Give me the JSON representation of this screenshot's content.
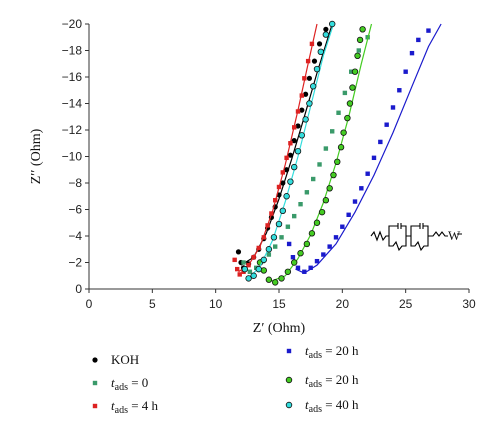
{
  "chart_data": {
    "type": "scatter",
    "title": "",
    "xlabel": "Z′ (Ohm)",
    "ylabel": "Z′′ (Ohm)",
    "xlim": [
      0,
      30
    ],
    "ylim": [
      0,
      -20
    ],
    "y_axis_inverted": true,
    "x_ticks": [
      "0",
      "5",
      "10",
      "15",
      "20",
      "25",
      "30"
    ],
    "y_ticks": [
      "0",
      "−2",
      "−4",
      "−6",
      "−8",
      "−10",
      "−12",
      "−14",
      "−16",
      "−18",
      "−20"
    ],
    "grid": false,
    "legend_position": "bottom",
    "inset": "equivalent circuit schematic",
    "series": [
      {
        "name": "KOH",
        "legend": {
          "main": "KOH"
        },
        "marker": "circle",
        "color": "#000000",
        "points": [
          [
            11.8,
            -2.8
          ],
          [
            12.0,
            -2.0
          ],
          [
            12.2,
            -1.6
          ],
          [
            12.6,
            -1.9
          ],
          [
            13.0,
            -2.4
          ],
          [
            13.4,
            -3.0
          ],
          [
            13.8,
            -3.8
          ],
          [
            14.1,
            -4.6
          ],
          [
            14.4,
            -5.4
          ],
          [
            14.7,
            -6.2
          ],
          [
            15.0,
            -7.1
          ],
          [
            15.3,
            -8.0
          ],
          [
            15.6,
            -9.0
          ],
          [
            15.9,
            -10.1
          ],
          [
            16.2,
            -11.2
          ],
          [
            16.5,
            -12.3
          ],
          [
            16.8,
            -13.5
          ],
          [
            17.1,
            -14.7
          ],
          [
            17.4,
            -15.9
          ],
          [
            17.8,
            -17.2
          ],
          [
            18.2,
            -18.5
          ],
          [
            18.7,
            -19.6
          ]
        ],
        "fit": [
          [
            12.0,
            -1.8
          ],
          [
            13.0,
            -2.4
          ],
          [
            14.0,
            -4.2
          ],
          [
            15.0,
            -6.8
          ],
          [
            16.0,
            -9.8
          ],
          [
            17.0,
            -13.0
          ],
          [
            18.0,
            -16.3
          ],
          [
            19.2,
            -20.0
          ]
        ]
      },
      {
        "name": "t_ads = 0",
        "legend": {
          "sym": "t",
          "sub": "ads",
          "val": " = 0"
        },
        "marker": "square",
        "color": "#3a9a6a",
        "points": [
          [
            12.2,
            -2.0
          ],
          [
            12.7,
            -1.3
          ],
          [
            13.2,
            -1.6
          ],
          [
            13.7,
            -2.1
          ],
          [
            14.2,
            -2.6
          ],
          [
            14.7,
            -3.2
          ],
          [
            15.2,
            -3.9
          ],
          [
            15.7,
            -4.7
          ],
          [
            16.2,
            -5.5
          ],
          [
            16.7,
            -6.4
          ],
          [
            17.2,
            -7.3
          ],
          [
            17.7,
            -8.3
          ],
          [
            18.2,
            -9.4
          ],
          [
            18.7,
            -10.6
          ],
          [
            19.2,
            -11.9
          ],
          [
            19.7,
            -13.3
          ],
          [
            20.2,
            -14.8
          ],
          [
            20.7,
            -16.4
          ],
          [
            21.3,
            -18.0
          ],
          [
            22.0,
            -19.0
          ]
        ],
        "fit": null
      },
      {
        "name": "t_ads = 4 h",
        "legend": {
          "sym": "t",
          "sub": "ads",
          "val": " = 4 h"
        },
        "marker": "square",
        "color": "#dd2222",
        "points": [
          [
            11.5,
            -2.2
          ],
          [
            11.7,
            -1.5
          ],
          [
            11.9,
            -1.1
          ],
          [
            12.2,
            -1.3
          ],
          [
            12.6,
            -1.8
          ],
          [
            13.0,
            -2.4
          ],
          [
            13.4,
            -3.1
          ],
          [
            13.8,
            -3.9
          ],
          [
            14.1,
            -4.8
          ],
          [
            14.4,
            -5.7
          ],
          [
            14.7,
            -6.7
          ],
          [
            15.0,
            -7.7
          ],
          [
            15.3,
            -8.8
          ],
          [
            15.6,
            -9.9
          ],
          [
            15.9,
            -11.0
          ],
          [
            16.2,
            -12.2
          ],
          [
            16.5,
            -13.4
          ],
          [
            16.8,
            -14.6
          ],
          [
            17.0,
            -15.9
          ],
          [
            17.3,
            -17.2
          ],
          [
            17.6,
            -18.5
          ]
        ],
        "fit": [
          [
            11.8,
            -1.3
          ],
          [
            12.6,
            -1.8
          ],
          [
            13.5,
            -3.2
          ],
          [
            14.5,
            -5.9
          ],
          [
            15.5,
            -9.4
          ],
          [
            16.5,
            -13.5
          ],
          [
            17.3,
            -17.0
          ],
          [
            18.0,
            -20.0
          ]
        ]
      },
      {
        "name": "t_ads = 20 h (square)",
        "legend": {
          "sym": "t",
          "sub": "ads",
          "val": " = 20 h"
        },
        "marker": "square",
        "color": "#1a1acc",
        "points": [
          [
            15.8,
            -3.4
          ],
          [
            16.1,
            -2.4
          ],
          [
            16.5,
            -1.6
          ],
          [
            17.0,
            -1.3
          ],
          [
            17.5,
            -1.6
          ],
          [
            18.0,
            -2.1
          ],
          [
            18.5,
            -2.6
          ],
          [
            19.0,
            -3.2
          ],
          [
            19.5,
            -3.9
          ],
          [
            20.0,
            -4.7
          ],
          [
            20.5,
            -5.6
          ],
          [
            21.0,
            -6.6
          ],
          [
            21.5,
            -7.6
          ],
          [
            22.0,
            -8.7
          ],
          [
            22.5,
            -9.9
          ],
          [
            23.0,
            -11.1
          ],
          [
            23.5,
            -12.4
          ],
          [
            24.0,
            -13.7
          ],
          [
            24.5,
            -15.0
          ],
          [
            25.0,
            -16.4
          ],
          [
            25.5,
            -17.8
          ],
          [
            26.0,
            -18.8
          ],
          [
            26.8,
            -19.5
          ]
        ],
        "fit": [
          [
            16.3,
            -1.5
          ],
          [
            17.0,
            -1.2
          ],
          [
            18.0,
            -1.8
          ],
          [
            19.5,
            -3.4
          ],
          [
            21.0,
            -5.8
          ],
          [
            22.5,
            -8.6
          ],
          [
            24.0,
            -11.8
          ],
          [
            25.5,
            -15.3
          ],
          [
            26.8,
            -18.3
          ],
          [
            27.8,
            -20.0
          ]
        ]
      },
      {
        "name": "t_ads = 20 h (circle)",
        "legend": {
          "sym": "t",
          "sub": "ads",
          "val": " = 20 h"
        },
        "marker": "circle",
        "color": "#44cc22",
        "points": [
          [
            13.5,
            -2.0
          ],
          [
            13.8,
            -1.4
          ],
          [
            14.2,
            -0.7
          ],
          [
            14.7,
            -0.5
          ],
          [
            15.2,
            -0.8
          ],
          [
            15.7,
            -1.3
          ],
          [
            16.2,
            -2.0
          ],
          [
            16.7,
            -2.7
          ],
          [
            17.2,
            -3.4
          ],
          [
            17.6,
            -4.2
          ],
          [
            18.0,
            -5.0
          ],
          [
            18.4,
            -5.8
          ],
          [
            18.7,
            -6.7
          ],
          [
            19.0,
            -7.6
          ],
          [
            19.3,
            -8.6
          ],
          [
            19.6,
            -9.6
          ],
          [
            19.9,
            -10.7
          ],
          [
            20.1,
            -11.8
          ],
          [
            20.4,
            -12.9
          ],
          [
            20.6,
            -14.0
          ],
          [
            20.8,
            -15.2
          ],
          [
            21.0,
            -16.4
          ],
          [
            21.2,
            -17.6
          ],
          [
            21.4,
            -18.8
          ],
          [
            21.6,
            -19.6
          ]
        ],
        "fit": [
          [
            14.4,
            -0.6
          ],
          [
            15.5,
            -1.0
          ],
          [
            16.5,
            -2.3
          ],
          [
            17.5,
            -4.1
          ],
          [
            18.5,
            -6.5
          ],
          [
            19.5,
            -9.5
          ],
          [
            20.5,
            -13.0
          ],
          [
            21.5,
            -17.0
          ],
          [
            22.3,
            -20.0
          ]
        ]
      },
      {
        "name": "t_ads = 40 h",
        "legend": {
          "sym": "t",
          "sub": "ads",
          "val": " = 40 h"
        },
        "marker": "circle",
        "color": "#33dddd",
        "points": [
          [
            12.3,
            -1.5
          ],
          [
            12.6,
            -0.8
          ],
          [
            13.0,
            -1.0
          ],
          [
            13.4,
            -1.5
          ],
          [
            13.8,
            -2.2
          ],
          [
            14.2,
            -3.0
          ],
          [
            14.6,
            -3.9
          ],
          [
            15.0,
            -4.9
          ],
          [
            15.3,
            -5.9
          ],
          [
            15.6,
            -7.0
          ],
          [
            15.9,
            -8.1
          ],
          [
            16.2,
            -9.2
          ],
          [
            16.5,
            -10.4
          ],
          [
            16.8,
            -11.6
          ],
          [
            17.1,
            -12.8
          ],
          [
            17.4,
            -14.0
          ],
          [
            17.7,
            -15.3
          ],
          [
            18.0,
            -16.6
          ],
          [
            18.3,
            -17.9
          ],
          [
            18.7,
            -19.2
          ],
          [
            19.2,
            -20.0
          ]
        ],
        "fit": [
          [
            12.7,
            -0.9
          ],
          [
            13.5,
            -1.7
          ],
          [
            14.5,
            -3.7
          ],
          [
            15.5,
            -6.6
          ],
          [
            16.5,
            -10.0
          ],
          [
            17.5,
            -13.8
          ],
          [
            18.5,
            -17.6
          ],
          [
            19.3,
            -20.0
          ]
        ]
      }
    ]
  }
}
